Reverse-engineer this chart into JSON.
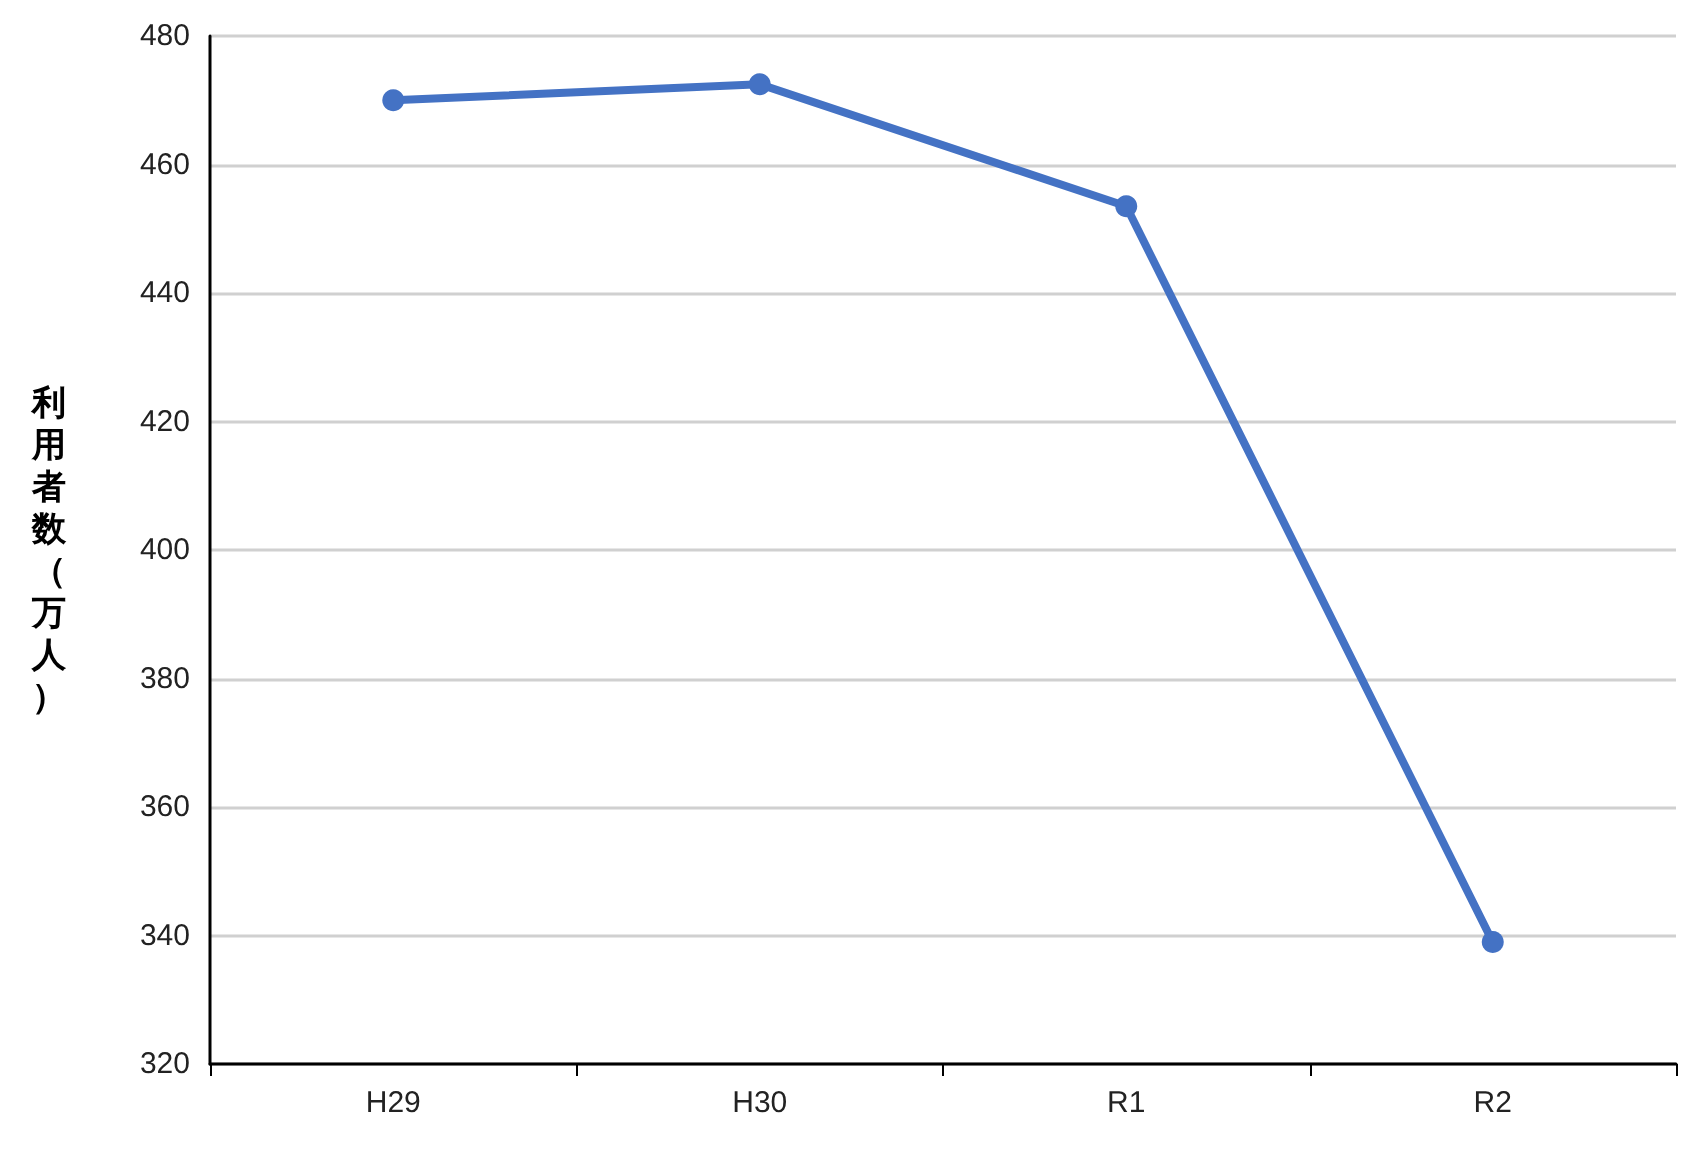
{
  "chart_data": {
    "type": "line",
    "ylabel": "利用者数（万人）",
    "categories": [
      "H29",
      "H30",
      "R1",
      "R2"
    ],
    "series": [
      {
        "color": "#4472c4",
        "values": [
          470,
          472.5,
          453.5,
          339
        ]
      }
    ],
    "ylim": [
      320,
      480
    ],
    "yticks": [
      320,
      340,
      360,
      380,
      400,
      420,
      440,
      460,
      480
    ],
    "grid": "y",
    "marker": "circle",
    "line_style": "solid"
  }
}
